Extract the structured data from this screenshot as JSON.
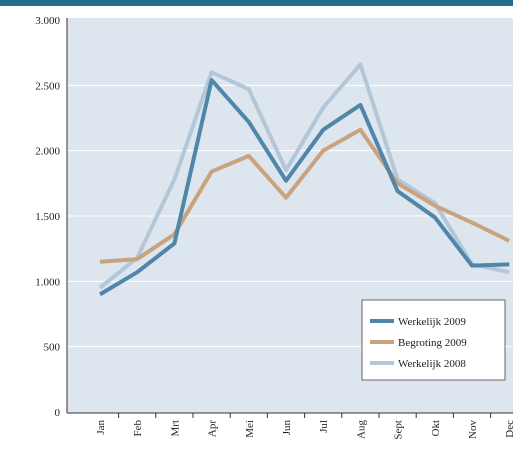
{
  "chart_data": {
    "type": "line",
    "categories": [
      "Jan",
      "Feb",
      "Mrt",
      "Apr",
      "Mei",
      "Jun",
      "Jul",
      "Aug",
      "Sept",
      "Okt",
      "Nov",
      "Dec"
    ],
    "series": [
      {
        "name": "Werkelijk 2009",
        "color": "#4f86aa",
        "values": [
          900,
          1070,
          1290,
          2540,
          2220,
          1770,
          2160,
          2350,
          1690,
          1490,
          1120,
          1130
        ]
      },
      {
        "name": "Begroting 2009",
        "color": "#c9a27e",
        "values": [
          1150,
          1170,
          1360,
          1840,
          1960,
          1640,
          2000,
          2160,
          1750,
          1580,
          1450,
          1310
        ]
      },
      {
        "name": "Werkelijk 2008",
        "color": "#b3c7d9",
        "values": [
          950,
          1180,
          1780,
          2600,
          2470,
          1850,
          2330,
          2660,
          1780,
          1600,
          1130,
          1070
        ]
      }
    ],
    "ylim": [
      0,
      3000
    ],
    "yticks": [
      0,
      500,
      {
        "value": 1000,
        "label": "1.000"
      },
      {
        "value": 1500,
        "label": "1.500"
      },
      {
        "value": 2000,
        "label": "2.000"
      },
      {
        "value": 2500,
        "label": "2.500"
      },
      {
        "value": 3000,
        "label": "3.000"
      }
    ],
    "grid": true,
    "legend": "lower right"
  }
}
